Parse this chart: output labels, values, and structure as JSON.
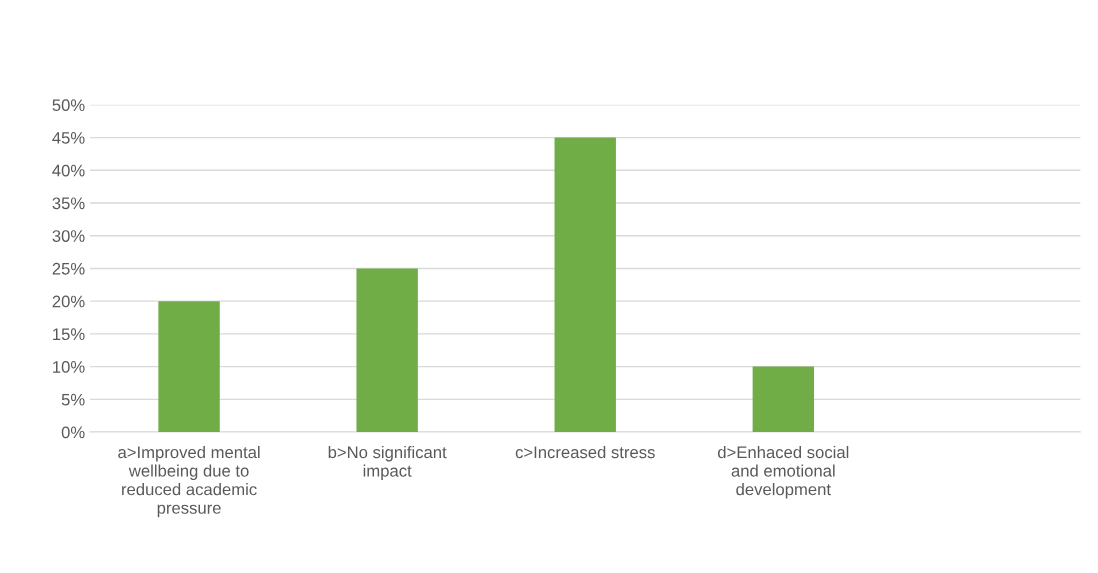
{
  "chart_data": {
    "type": "bar",
    "categories": [
      "a>Improved mental\nwellbeing due to\nreduced academic\npressure",
      "b>No significant\nimpact",
      "c>Increased stress",
      "d>Enhaced social\nand emotional\ndevelopment",
      null
    ],
    "values": [
      20,
      25,
      45,
      10,
      null
    ],
    "color": "#70ad47",
    "ylim": [
      0,
      50
    ],
    "yticks": [
      {
        "value": 0,
        "label": "0%"
      },
      {
        "value": 5,
        "label": "5%"
      },
      {
        "value": 10,
        "label": "10%"
      },
      {
        "value": 15,
        "label": "15%"
      },
      {
        "value": 20,
        "label": "20%"
      },
      {
        "value": 25,
        "label": "25%"
      },
      {
        "value": 30,
        "label": "30%"
      },
      {
        "value": 35,
        "label": "35%"
      },
      {
        "value": 40,
        "label": "40%"
      },
      {
        "value": 45,
        "label": "45%"
      },
      {
        "value": 50,
        "label": "50%"
      }
    ],
    "grid": "y"
  }
}
